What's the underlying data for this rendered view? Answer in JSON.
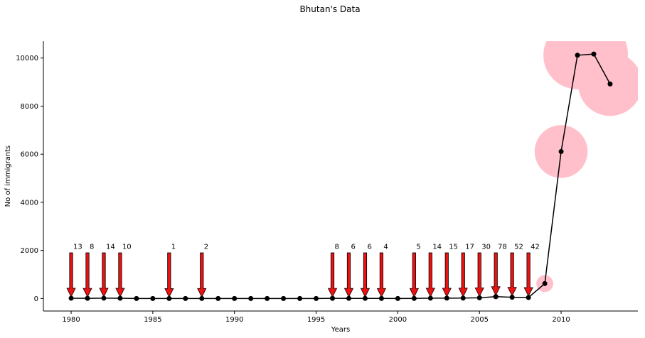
{
  "chart_data": {
    "type": "line",
    "title": "Bhutan's Data",
    "xlabel": "Years",
    "ylabel": "No of immigrants",
    "xlim": [
      1978.3,
      2014.7
    ],
    "ylim": [
      -520,
      10700
    ],
    "xticks": [
      1980,
      1985,
      1990,
      1995,
      2000,
      2005,
      2010
    ],
    "yticks": [
      0,
      2000,
      4000,
      6000,
      8000,
      10000
    ],
    "grid": false,
    "colors": {
      "line": "#000000",
      "marker": "#000000",
      "bubble": "#ffc0cb",
      "arrow_fill": "#ee1111",
      "arrow_edge": "#000000"
    },
    "series": [
      {
        "x": [
          1980,
          1981,
          1982,
          1983,
          1984,
          1985,
          1986,
          1987,
          1988,
          1989,
          1990,
          1991,
          1992,
          1993,
          1994,
          1995,
          1996,
          1997,
          1998,
          1999,
          2000,
          2001,
          2002,
          2003,
          2004,
          2005,
          2006,
          2007,
          2008,
          2009,
          2010,
          2011,
          2012,
          2013
        ],
        "values": [
          13,
          8,
          14,
          10,
          0,
          0,
          1,
          0,
          2,
          0,
          0,
          0,
          0,
          0,
          0,
          0,
          8,
          6,
          6,
          4,
          0,
          5,
          14,
          15,
          17,
          30,
          78,
          52,
          42,
          621,
          6111,
          10116,
          10164,
          8921
        ]
      }
    ],
    "annotations": [
      {
        "year": 1980,
        "label": "13"
      },
      {
        "year": 1981,
        "label": "8"
      },
      {
        "year": 1982,
        "label": "14"
      },
      {
        "year": 1983,
        "label": "10"
      },
      {
        "year": 1986,
        "label": "1"
      },
      {
        "year": 1988,
        "label": "2"
      },
      {
        "year": 1996,
        "label": "8"
      },
      {
        "year": 1997,
        "label": "6"
      },
      {
        "year": 1998,
        "label": "6"
      },
      {
        "year": 1999,
        "label": "4"
      },
      {
        "year": 2001,
        "label": "5"
      },
      {
        "year": 2002,
        "label": "14"
      },
      {
        "year": 2003,
        "label": "15"
      },
      {
        "year": 2004,
        "label": "17"
      },
      {
        "year": 2005,
        "label": "30"
      },
      {
        "year": 2006,
        "label": "78"
      },
      {
        "year": 2007,
        "label": "52"
      },
      {
        "year": 2008,
        "label": "42"
      }
    ]
  }
}
